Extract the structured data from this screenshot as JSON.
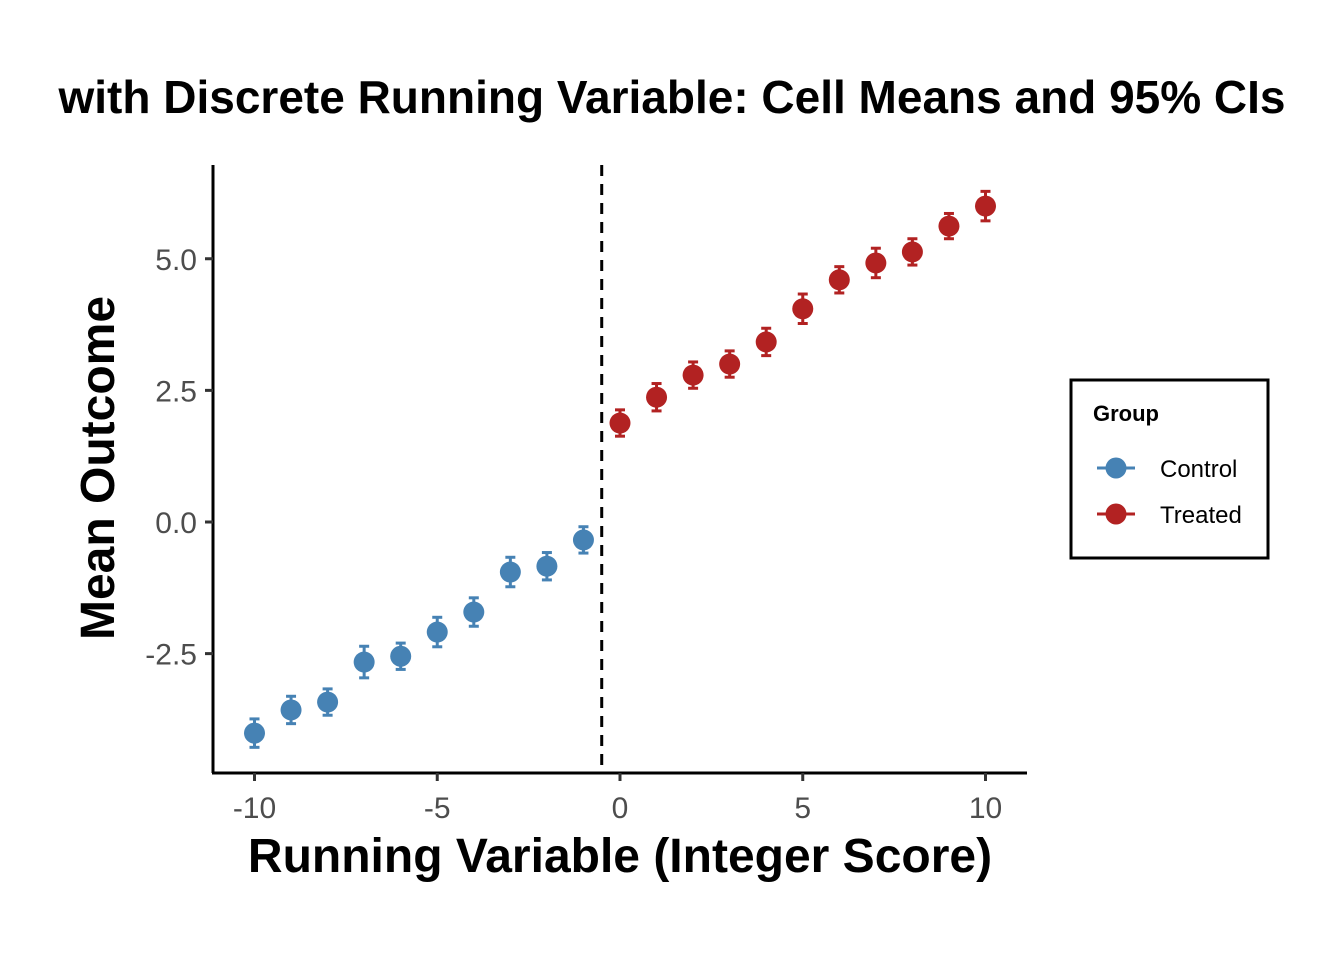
{
  "chart_data": {
    "type": "scatter",
    "title": "with Discrete Running Variable: Cell Means and 95% CIs",
    "xlabel": "Running Variable (Integer Score)",
    "ylabel": "Mean Outcome",
    "xlim": [
      -11.15,
      11.15
    ],
    "ylim": [
      -4.75,
      6.78
    ],
    "xticks": [
      -10,
      -5,
      0,
      5,
      10
    ],
    "xtick_labels": [
      "-10",
      "-5",
      "0",
      "5",
      "10"
    ],
    "yticks": [
      -2.5,
      0.0,
      2.5,
      5.0
    ],
    "ytick_labels": [
      "-2.5",
      "0.0",
      "2.5",
      "5.0"
    ],
    "cutoff": -0.5,
    "grid": false,
    "legend": {
      "title": "Group",
      "placement": "right"
    },
    "series": [
      {
        "name": "Control",
        "color": "#4682B4",
        "x": [
          -10,
          -9,
          -8,
          -7,
          -6,
          -5,
          -4,
          -3,
          -2,
          -1
        ],
        "y": [
          -4.01,
          -3.57,
          -3.42,
          -2.66,
          -2.55,
          -2.09,
          -1.71,
          -0.95,
          -0.84,
          -0.34
        ],
        "ci_half": [
          0.27,
          0.26,
          0.25,
          0.3,
          0.25,
          0.28,
          0.27,
          0.28,
          0.26,
          0.25
        ]
      },
      {
        "name": "Treated",
        "color": "#B22222",
        "x": [
          0,
          1,
          2,
          3,
          4,
          5,
          6,
          7,
          8,
          9,
          10
        ],
        "y": [
          1.88,
          2.37,
          2.79,
          3.0,
          3.42,
          4.05,
          4.6,
          4.92,
          5.13,
          5.62,
          6.0
        ],
        "ci_half": [
          0.25,
          0.26,
          0.25,
          0.25,
          0.26,
          0.28,
          0.25,
          0.28,
          0.25,
          0.24,
          0.28
        ]
      }
    ]
  }
}
